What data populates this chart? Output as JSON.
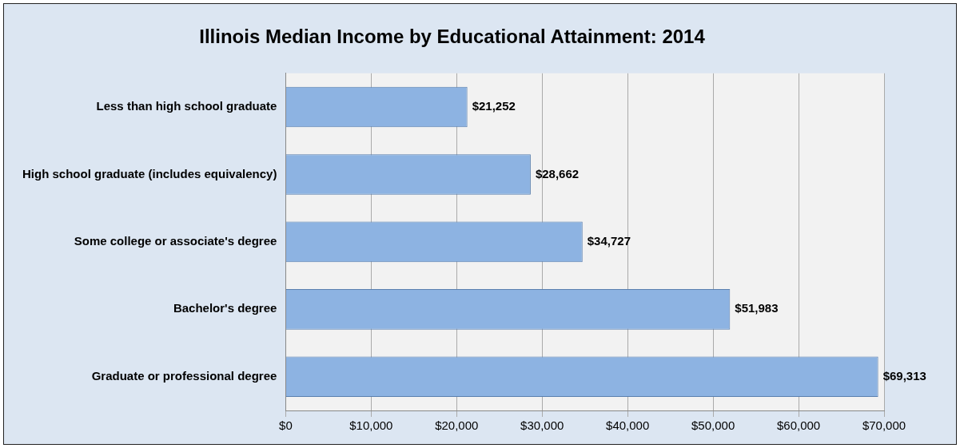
{
  "chart_data": {
    "type": "bar",
    "orientation": "horizontal",
    "title": "Illinois Median Income by Educational Attainment: 2014",
    "categories": [
      "Less than high school graduate",
      "High school graduate (includes equivalency)",
      "Some college or associate's degree",
      "Bachelor's degree",
      "Graduate or professional degree"
    ],
    "values": [
      21252,
      28662,
      34727,
      51983,
      69313
    ],
    "value_labels": [
      "$21,252",
      "$28,662",
      "$34,727",
      "$51,983",
      "$69,313"
    ],
    "color": "#8db3e2",
    "xlim": [
      0,
      70000
    ],
    "xticks": [
      {
        "value": 0,
        "label": "$0"
      },
      {
        "value": 10000,
        "label": "$10,000"
      },
      {
        "value": 20000,
        "label": "$20,000"
      },
      {
        "value": 30000,
        "label": "$30,000"
      },
      {
        "value": 40000,
        "label": "$40,000"
      },
      {
        "value": 50000,
        "label": "$50,000"
      },
      {
        "value": 60000,
        "label": "$60,000"
      },
      {
        "value": 70000,
        "label": "$70,000"
      }
    ],
    "grid": "x"
  }
}
